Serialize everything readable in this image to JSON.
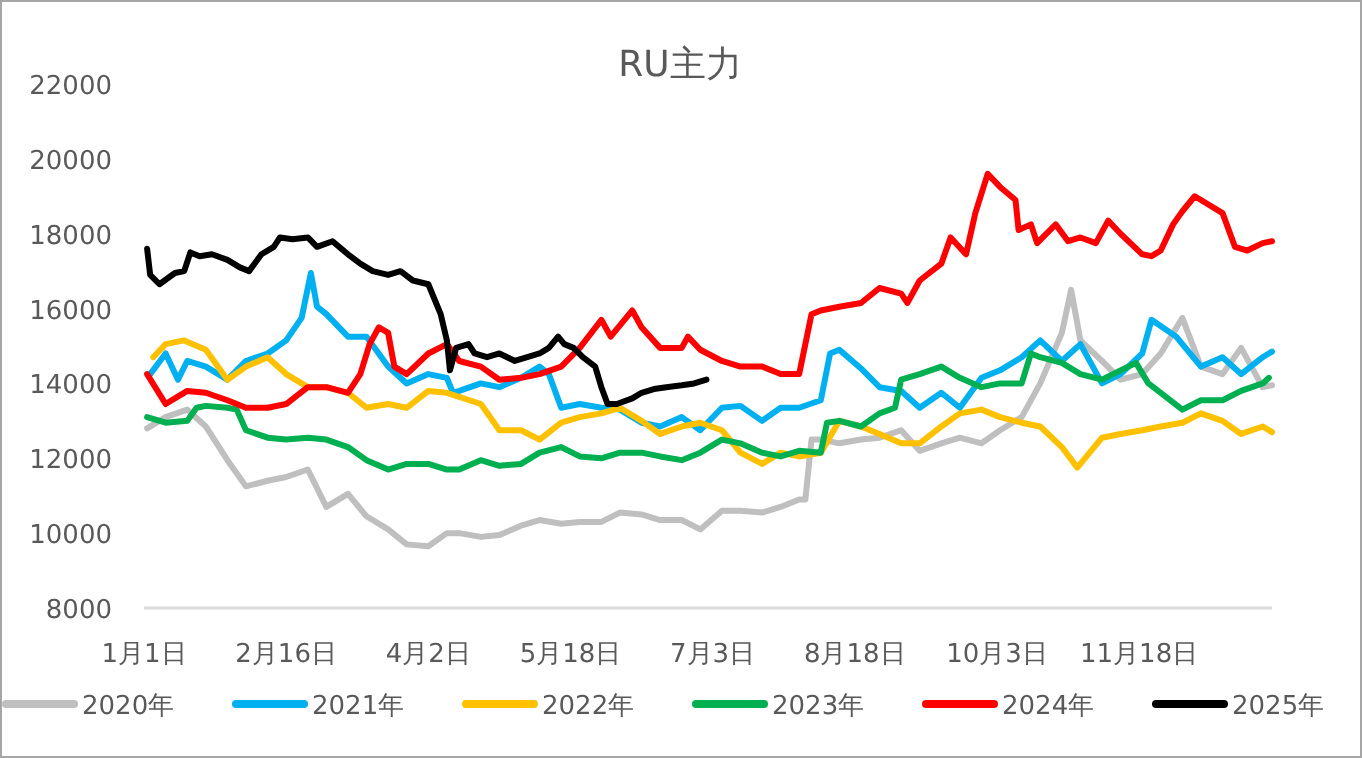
{
  "chart_data": {
    "type": "line",
    "title": "RU主力",
    "legend": "bottom",
    "marker": "none",
    "line_style": "solid",
    "xlim": [
      "--01-01",
      "--12-31"
    ],
    "xticks": [
      {
        "value": "--01-01",
        "label": "1月1日"
      },
      {
        "value": "--02-16",
        "label": "2月16日"
      },
      {
        "value": "--04-02",
        "label": "4月2日"
      },
      {
        "value": "--05-18",
        "label": "5月18日"
      },
      {
        "value": "--07-03",
        "label": "7月3日"
      },
      {
        "value": "--08-18",
        "label": "8月18日"
      },
      {
        "value": "--10-03",
        "label": "10月3日"
      },
      {
        "value": "--11-18",
        "label": "11月18日"
      }
    ],
    "ylim": [
      8000,
      22000
    ],
    "yticks": [
      8000,
      10000,
      12000,
      14000,
      16000,
      18000,
      20000,
      22000
    ],
    "series": [
      {
        "name": "2020年",
        "color": "#bfbfbf",
        "x": [
          "--01-02",
          "--01-08",
          "--01-15",
          "--01-21",
          "--01-28",
          "--02-03",
          "--02-10",
          "--02-16",
          "--02-23",
          "--02-29",
          "--03-07",
          "--03-13",
          "--03-20",
          "--03-26",
          "--04-02",
          "--04-08",
          "--04-12",
          "--04-19",
          "--04-25",
          "--05-02",
          "--05-08",
          "--05-15",
          "--05-21",
          "--05-28",
          "--06-03",
          "--06-10",
          "--06-16",
          "--06-23",
          "--06-29",
          "--07-06",
          "--07-12",
          "--07-19",
          "--07-25",
          "--07-31",
          "--08-02",
          "--08-04",
          "--08-07",
          "--08-13",
          "--08-20",
          "--08-26",
          "--09-02",
          "--09-08",
          "--09-15",
          "--09-21",
          "--09-28",
          "--10-04",
          "--10-11",
          "--10-17",
          "--10-24",
          "--10-27",
          "--10-30",
          "--11-06",
          "--11-12",
          "--11-19",
          "--11-25",
          "--12-02",
          "--12-08",
          "--12-15",
          "--12-21",
          "--12-28",
          "--12-31"
        ],
        "values": [
          12800,
          13100,
          13300,
          12850,
          11950,
          11250,
          11400,
          11500,
          11700,
          10700,
          11050,
          10450,
          10100,
          9700,
          9650,
          10000,
          10000,
          9900,
          9950,
          10200,
          10350,
          10250,
          10300,
          10300,
          10550,
          10500,
          10350,
          10350,
          10100,
          10600,
          10600,
          10550,
          10700,
          10900,
          10900,
          12500,
          12500,
          12400,
          12500,
          12550,
          12750,
          12200,
          12400,
          12550,
          12400,
          12750,
          13100,
          14000,
          15350,
          16500,
          15150,
          14600,
          14100,
          14250,
          14800,
          15750,
          14450,
          14250,
          14950,
          13900,
          13950
        ]
      },
      {
        "name": "2021年",
        "color": "#00b0f0",
        "x": [
          "--01-03",
          "--01-08",
          "--01-12",
          "--01-15",
          "--01-21",
          "--01-28",
          "--02-03",
          "--02-10",
          "--02-16",
          "--02-21",
          "--02-24",
          "--02-26",
          "--02-29",
          "--03-07",
          "--03-13",
          "--03-20",
          "--03-26",
          "--04-02",
          "--04-08",
          "--04-10",
          "--04-12",
          "--04-19",
          "--04-25",
          "--05-02",
          "--05-08",
          "--05-11",
          "--05-15",
          "--05-21",
          "--05-28",
          "--06-03",
          "--06-10",
          "--06-16",
          "--06-23",
          "--06-29",
          "--07-06",
          "--07-12",
          "--07-19",
          "--07-25",
          "--07-31",
          "--08-07",
          "--08-10",
          "--08-13",
          "--08-20",
          "--08-26",
          "--09-02",
          "--09-08",
          "--09-15",
          "--09-21",
          "--09-28",
          "--10-04",
          "--10-11",
          "--10-17",
          "--10-24",
          "--10-30",
          "--11-06",
          "--11-12",
          "--11-19",
          "--11-22",
          "--11-30",
          "--12-08",
          "--12-15",
          "--12-21",
          "--12-28",
          "--12-31"
        ],
        "values": [
          14250,
          14800,
          14100,
          14600,
          14450,
          14100,
          14600,
          14800,
          15150,
          15750,
          16950,
          16050,
          15850,
          15250,
          15250,
          14450,
          14000,
          14250,
          14150,
          13750,
          13800,
          14000,
          13900,
          14150,
          14450,
          14250,
          13350,
          13450,
          13350,
          13300,
          12950,
          12850,
          13100,
          12750,
          13350,
          13400,
          13000,
          13350,
          13350,
          13550,
          14800,
          14900,
          14400,
          13900,
          13800,
          13350,
          13750,
          13350,
          14150,
          14350,
          14700,
          15150,
          14600,
          15050,
          14000,
          14250,
          14800,
          15700,
          15250,
          14450,
          14700,
          14250,
          14700,
          14850
        ]
      },
      {
        "name": "2022年",
        "color": "#ffc000",
        "x": [
          "--01-04",
          "--01-08",
          "--01-14",
          "--01-21",
          "--01-28",
          "--02-03",
          "--02-10",
          "--02-16",
          "--02-23",
          "--02-29",
          "--03-07",
          "--03-13",
          "--03-20",
          "--03-26",
          "--04-02",
          "--04-08",
          "--04-19",
          "--04-25",
          "--05-02",
          "--05-08",
          "--05-15",
          "--05-21",
          "--05-28",
          "--06-03",
          "--06-10",
          "--06-16",
          "--06-23",
          "--06-29",
          "--07-06",
          "--07-12",
          "--07-19",
          "--07-25",
          "--07-31",
          "--08-07",
          "--08-13",
          "--08-20",
          "--08-26",
          "--09-02",
          "--09-08",
          "--09-15",
          "--09-21",
          "--09-28",
          "--10-04",
          "--10-11",
          "--10-17",
          "--10-24",
          "--10-29",
          "--11-06",
          "--11-12",
          "--11-19",
          "--11-25",
          "--12-02",
          "--12-08",
          "--12-15",
          "--12-21",
          "--12-28",
          "--12-31"
        ],
        "values": [
          14700,
          15050,
          15150,
          14900,
          14100,
          14450,
          14700,
          14250,
          13900,
          13900,
          13750,
          13350,
          13450,
          13350,
          13800,
          13750,
          13450,
          12750,
          12750,
          12500,
          12950,
          13100,
          13200,
          13350,
          13000,
          12650,
          12850,
          12950,
          12750,
          12150,
          11850,
          12150,
          12050,
          12150,
          13000,
          12850,
          12650,
          12400,
          12400,
          12850,
          13200,
          13300,
          13100,
          12950,
          12850,
          12300,
          11750,
          12550,
          12650,
          12750,
          12850,
          12950,
          13200,
          13000,
          12650,
          12850,
          12700
        ]
      },
      {
        "name": "2023年",
        "color": "#00b050",
        "x": [
          "--01-02",
          "--01-08",
          "--01-15",
          "--01-18",
          "--01-21",
          "--01-28",
          "--01-31",
          "--02-03",
          "--02-10",
          "--02-16",
          "--02-23",
          "--02-29",
          "--03-07",
          "--03-13",
          "--03-20",
          "--03-26",
          "--04-02",
          "--04-08",
          "--04-12",
          "--04-19",
          "--04-25",
          "--05-02",
          "--05-08",
          "--05-15",
          "--05-21",
          "--05-28",
          "--06-03",
          "--06-10",
          "--06-16",
          "--06-23",
          "--06-29",
          "--07-06",
          "--07-12",
          "--07-19",
          "--07-25",
          "--07-31",
          "--08-07",
          "--08-09",
          "--08-13",
          "--08-20",
          "--08-26",
          "--08-31",
          "--09-02",
          "--09-08",
          "--09-15",
          "--09-21",
          "--09-28",
          "--10-04",
          "--10-11",
          "--10-14",
          "--10-17",
          "--10-24",
          "--10-30",
          "--11-06",
          "--11-12",
          "--11-17",
          "--11-21",
          "--11-25",
          "--12-02",
          "--12-08",
          "--12-15",
          "--12-21",
          "--12-28",
          "--12-30"
        ],
        "values": [
          13100,
          12950,
          13000,
          13350,
          13400,
          13350,
          13300,
          12750,
          12550,
          12500,
          12550,
          12500,
          12300,
          11950,
          11700,
          11850,
          11850,
          11700,
          11700,
          11950,
          11800,
          11850,
          12150,
          12300,
          12050,
          12000,
          12150,
          12150,
          12050,
          11950,
          12150,
          12500,
          12400,
          12150,
          12050,
          12200,
          12150,
          12950,
          13000,
          12850,
          13200,
          13350,
          14100,
          14250,
          14450,
          14150,
          13900,
          14000,
          14000,
          14800,
          14700,
          14550,
          14250,
          14100,
          14350,
          14550,
          14000,
          13750,
          13300,
          13550,
          13550,
          13800,
          14000,
          14150
        ]
      },
      {
        "name": "2024年",
        "color": "#ff0000",
        "x": [
          "--01-02",
          "--01-08",
          "--01-15",
          "--01-21",
          "--01-28",
          "--02-03",
          "--02-10",
          "--02-16",
          "--02-23",
          "--02-29",
          "--03-07",
          "--03-11",
          "--03-14",
          "--03-17",
          "--03-20",
          "--03-22",
          "--03-26",
          "--04-02",
          "--04-08",
          "--04-12",
          "--04-19",
          "--04-25",
          "--05-02",
          "--05-08",
          "--05-15",
          "--05-21",
          "--05-28",
          "--05-31",
          "--06-07",
          "--06-10",
          "--06-16",
          "--06-23",
          "--06-25",
          "--06-29",
          "--07-06",
          "--07-12",
          "--07-19",
          "--07-25",
          "--07-31",
          "--08-04",
          "--08-07",
          "--08-13",
          "--08-20",
          "--08-26",
          "--09-02",
          "--09-04",
          "--09-08",
          "--09-15",
          "--09-18",
          "--09-23",
          "--09-26",
          "--09-30",
          "--10-04",
          "--10-09",
          "--10-10",
          "--10-14",
          "--10-16",
          "--10-22",
          "--10-26",
          "--10-30",
          "--11-04",
          "--11-08",
          "--11-12",
          "--11-19",
          "--11-22",
          "--11-25",
          "--11-29",
          "--12-02",
          "--12-06",
          "--12-10",
          "--12-15",
          "--12-19",
          "--12-23",
          "--12-28",
          "--12-31"
        ],
        "values": [
          14250,
          13450,
          13800,
          13750,
          13550,
          13350,
          13350,
          13450,
          13900,
          13900,
          13750,
          14250,
          15050,
          15500,
          15350,
          14450,
          14250,
          14800,
          15050,
          14600,
          14450,
          14100,
          14150,
          14250,
          14450,
          14950,
          15700,
          15250,
          15950,
          15500,
          14950,
          14950,
          15250,
          14900,
          14600,
          14450,
          14450,
          14250,
          14250,
          15850,
          15950,
          16050,
          16150,
          16550,
          16400,
          16150,
          16750,
          17200,
          17900,
          17450,
          18550,
          19600,
          19250,
          18900,
          18100,
          18250,
          17750,
          18250,
          17800,
          17900,
          17750,
          18350,
          18000,
          17450,
          17400,
          17550,
          18250,
          18600,
          19000,
          18800,
          18550,
          17650,
          17550,
          17750,
          17800
        ]
      },
      {
        "name": "2025年",
        "color": "#000000",
        "x": [
          "--01-02",
          "--01-03",
          "--01-06",
          "--01-11",
          "--01-14",
          "--01-16",
          "--01-19",
          "--01-23",
          "--01-28",
          "--02-01",
          "--02-04",
          "--02-08",
          "--02-12",
          "--02-14",
          "--02-18",
          "--02-23",
          "--02-26",
          "--03-02",
          "--03-07",
          "--03-11",
          "--03-15",
          "--03-20",
          "--03-24",
          "--03-28",
          "--04-02",
          "--04-06",
          "--04-08",
          "--04-09",
          "--04-11",
          "--04-15",
          "--04-17",
          "--04-21",
          "--04-25",
          "--04-30",
          "--05-04",
          "--05-08",
          "--05-11",
          "--05-14",
          "--05-16",
          "--05-19",
          "--05-22",
          "--05-26",
          "--05-28",
          "--05-30",
          "--06-02",
          "--06-07",
          "--06-10",
          "--06-14",
          "--06-18",
          "--06-23",
          "--06-27",
          "--07-01"
        ],
        "values": [
          17600,
          16900,
          16650,
          16950,
          17000,
          17500,
          17400,
          17450,
          17300,
          17100,
          17000,
          17450,
          17650,
          17900,
          17850,
          17900,
          17650,
          17800,
          17450,
          17200,
          17000,
          16900,
          17000,
          16750,
          16650,
          15850,
          15150,
          14350,
          14950,
          15050,
          14800,
          14700,
          14800,
          14600,
          14700,
          14800,
          14950,
          15250,
          15050,
          14950,
          14700,
          14450,
          13900,
          13450,
          13450,
          13600,
          13750,
          13850,
          13900,
          13950,
          14000,
          14100
        ]
      }
    ]
  }
}
